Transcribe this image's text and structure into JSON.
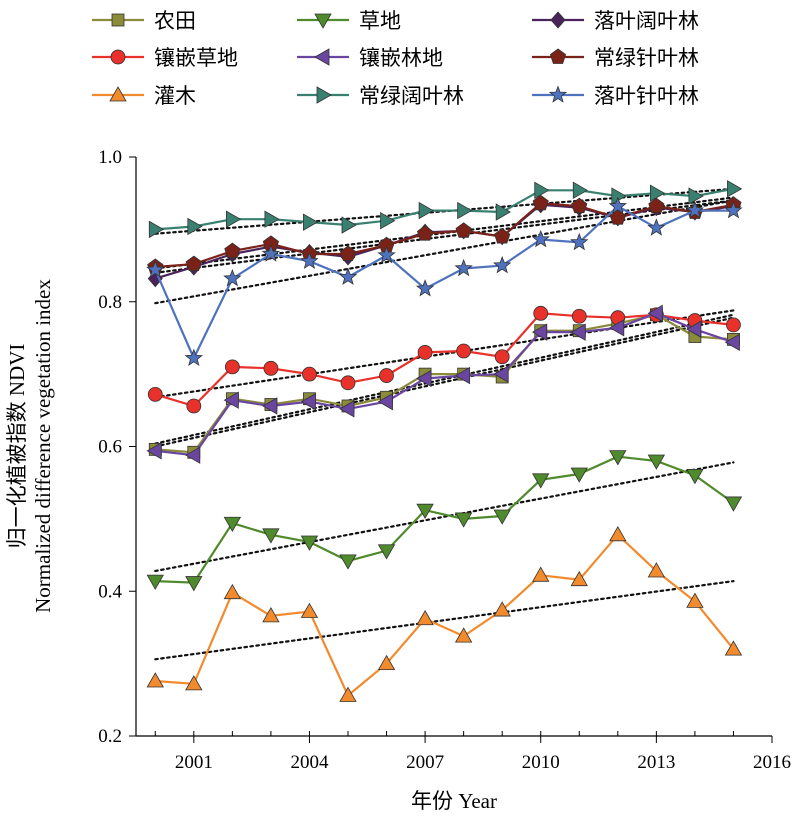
{
  "chart_data": {
    "type": "line",
    "xlabel": "年份 Year",
    "ylabel_cn": "归一化植被指数 NDVI",
    "ylabel_en": "Normalized difference vegetation index",
    "xlim": [
      1999.5,
      2016
    ],
    "ylim": [
      0.2,
      1.0
    ],
    "x_ticks": [
      2001,
      2004,
      2007,
      2010,
      2013,
      2016
    ],
    "y_ticks": [
      0.2,
      0.4,
      0.6,
      0.8,
      1.0
    ],
    "y_tick_labels": [
      "0.2",
      "0.4",
      "0.6",
      "0.8",
      "1.0"
    ],
    "trendline_style": "black dotted",
    "legend_position": "top",
    "x": [
      2000,
      2001,
      2002,
      2003,
      2004,
      2005,
      2006,
      2007,
      2008,
      2009,
      2010,
      2011,
      2012,
      2013,
      2014,
      2015
    ],
    "series": [
      {
        "name": "农田",
        "color": "#8b8b3a",
        "marker": "square",
        "values": [
          0.596,
          0.592,
          0.666,
          0.658,
          0.666,
          0.656,
          0.668,
          0.7,
          0.7,
          0.696,
          0.76,
          0.76,
          0.77,
          0.782,
          0.752,
          0.748
        ],
        "trend": [
          0.604,
          0.782
        ]
      },
      {
        "name": "草地",
        "color": "#4f8a2c",
        "marker": "triangle-down",
        "values": [
          0.414,
          0.412,
          0.494,
          0.478,
          0.468,
          0.442,
          0.456,
          0.512,
          0.5,
          0.504,
          0.554,
          0.562,
          0.586,
          0.58,
          0.56,
          0.522
        ],
        "trend": [
          0.428,
          0.578
        ]
      },
      {
        "name": "落叶阔叶林",
        "color": "#4a235a",
        "marker": "diamond",
        "values": [
          0.832,
          0.848,
          0.866,
          0.876,
          0.868,
          0.862,
          0.878,
          0.896,
          0.898,
          0.89,
          0.934,
          0.93,
          0.916,
          0.93,
          0.924,
          0.932
        ],
        "trend": [
          0.84,
          0.94
        ]
      },
      {
        "name": "镶嵌草地",
        "color": "#e8312a",
        "marker": "circle",
        "values": [
          0.672,
          0.656,
          0.71,
          0.708,
          0.7,
          0.688,
          0.698,
          0.73,
          0.732,
          0.724,
          0.784,
          0.78,
          0.778,
          0.782,
          0.774,
          0.768
        ],
        "trend": [
          0.668,
          0.788
        ]
      },
      {
        "name": "镶嵌林地",
        "color": "#6a46a0",
        "marker": "triangle-left",
        "values": [
          0.594,
          0.588,
          0.664,
          0.656,
          0.662,
          0.652,
          0.662,
          0.694,
          0.698,
          0.7,
          0.758,
          0.758,
          0.764,
          0.784,
          0.762,
          0.744
        ],
        "trend": [
          0.6,
          0.778
        ]
      },
      {
        "name": "常绿针叶林",
        "color": "#7a2218",
        "marker": "pentagon",
        "values": [
          0.848,
          0.852,
          0.87,
          0.88,
          0.866,
          0.866,
          0.878,
          0.894,
          0.898,
          0.89,
          0.936,
          0.932,
          0.916,
          0.932,
          0.924,
          0.934
        ],
        "trend": [
          0.846,
          0.944
        ]
      },
      {
        "name": "灌木",
        "color": "#f28a2e",
        "marker": "triangle-up",
        "values": [
          0.276,
          0.272,
          0.398,
          0.366,
          0.372,
          0.256,
          0.3,
          0.362,
          0.338,
          0.374,
          0.422,
          0.416,
          0.478,
          0.428,
          0.386,
          0.32
        ],
        "trend": [
          0.306,
          0.414
        ]
      },
      {
        "name": "常绿阔叶林",
        "color": "#3a8070",
        "marker": "triangle-right",
        "values": [
          0.9,
          0.904,
          0.914,
          0.914,
          0.91,
          0.906,
          0.912,
          0.926,
          0.926,
          0.924,
          0.954,
          0.954,
          0.946,
          0.95,
          0.946,
          0.956
        ],
        "trend": [
          0.894,
          0.956
        ]
      },
      {
        "name": "落叶针叶林",
        "color": "#4f72be",
        "marker": "star",
        "values": [
          0.844,
          0.722,
          0.832,
          0.866,
          0.856,
          0.834,
          0.864,
          0.818,
          0.846,
          0.85,
          0.886,
          0.882,
          0.932,
          0.902,
          0.926,
          0.926
        ],
        "trend": [
          0.798,
          0.94
        ]
      }
    ]
  }
}
